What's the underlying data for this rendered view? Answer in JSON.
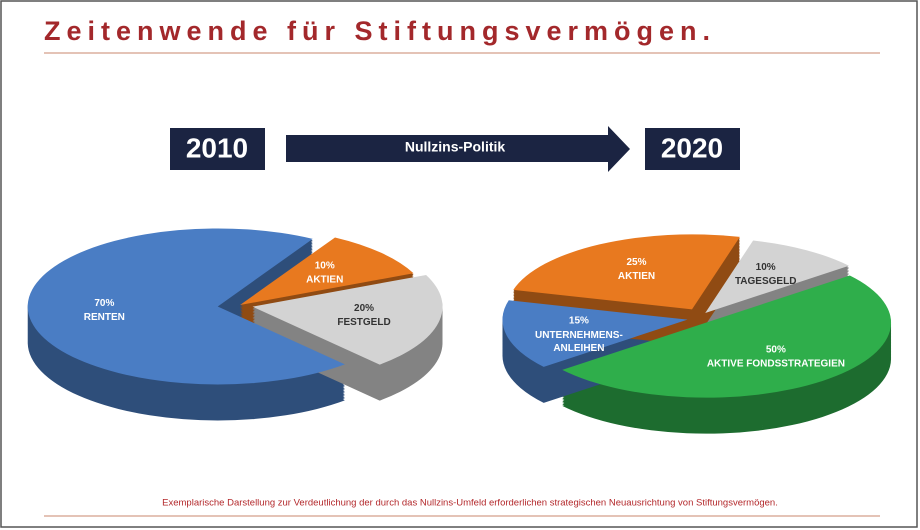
{
  "header": {
    "title": "Zeitenwende für Stiftungsvermögen."
  },
  "banner": {
    "from": "2010",
    "label": "Nullzins-Politik",
    "to": "2020"
  },
  "footnote": "Exemplarische Darstellung zur Verdeutlichung der durch das Nullzins-Umfeld erforderlichen strategischen Neuausrichtung von Stiftungsvermögen.",
  "chart_data": [
    {
      "type": "pie",
      "categories": [
        "RENTEN",
        "AKTIEN",
        "FESTGELD"
      ],
      "values": [
        70,
        10,
        20
      ],
      "value_labels": [
        "70%",
        "10%",
        "20%"
      ],
      "colors": [
        "#4a7dc4",
        "#e8791f",
        "#d3d3d3"
      ],
      "label_colors": [
        "#ffffff",
        "#ffffff",
        "#333333"
      ]
    },
    {
      "type": "pie",
      "categories": [
        "TAGESGELD",
        "AKTIVE FONDSSTRATEGIEN",
        "UNTERNEHMENS-ANLEIHEN",
        "AKTIEN"
      ],
      "values": [
        10,
        50,
        15,
        25
      ],
      "value_labels": [
        "10%",
        "50%",
        "15%",
        "25%"
      ],
      "colors": [
        "#d3d3d3",
        "#2fae4b",
        "#4a7dc4",
        "#e8791f"
      ],
      "label_colors": [
        "#333333",
        "#ffffff",
        "#ffffff",
        "#ffffff"
      ]
    }
  ]
}
